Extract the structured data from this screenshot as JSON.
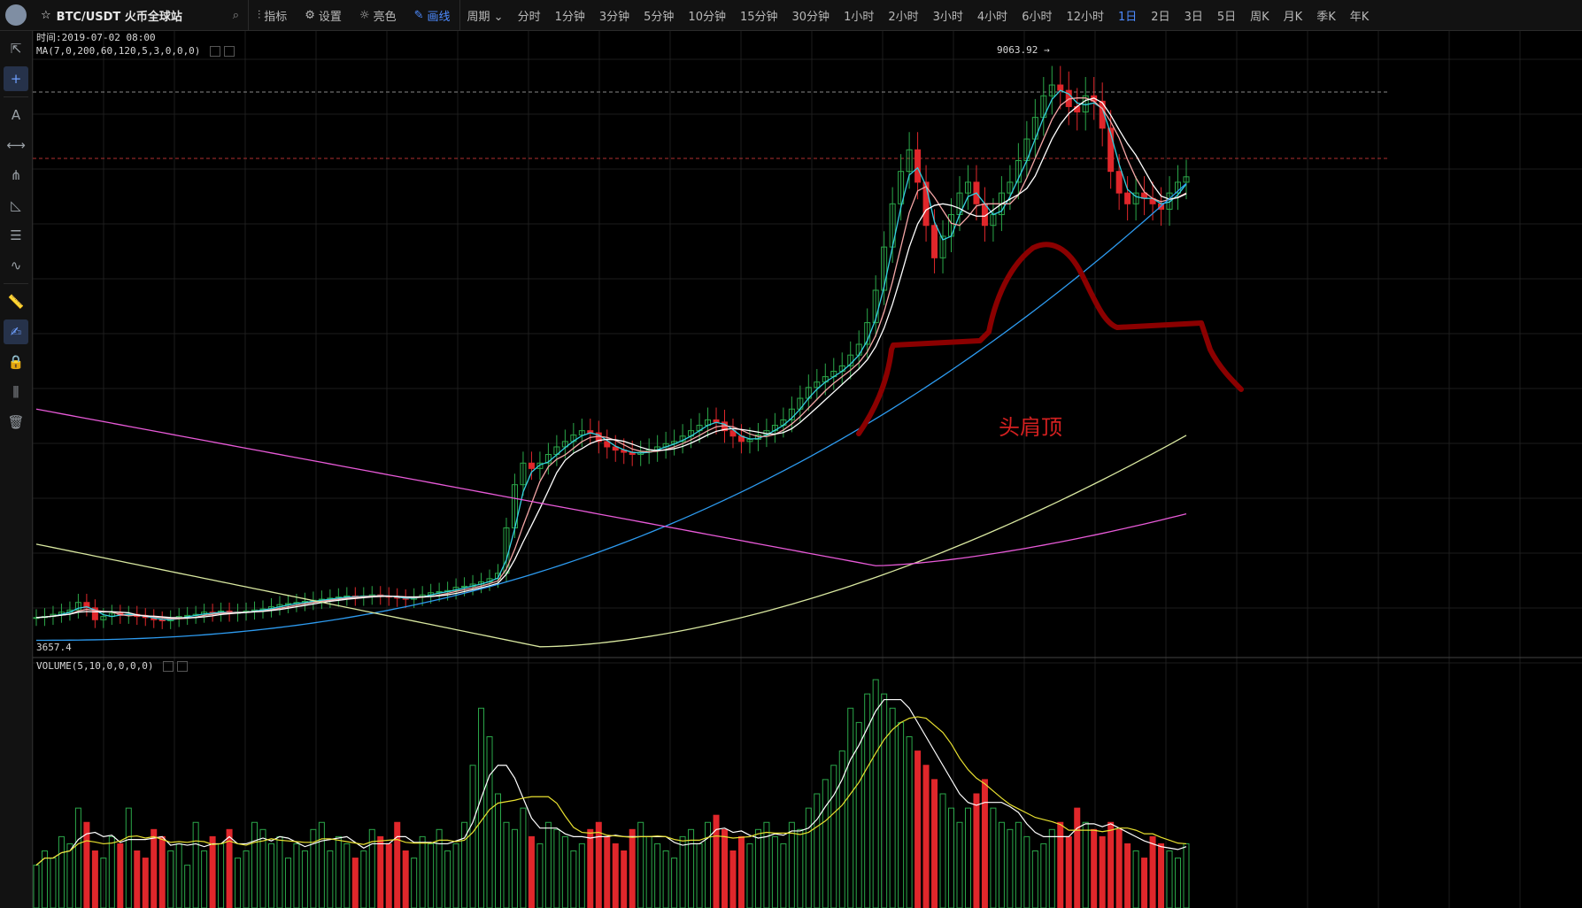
{
  "pair": {
    "title": "BTC/USDT 火币全球站",
    "star_icon": "star-icon",
    "search_icon": "search-icon"
  },
  "toolbar": [
    {
      "label": "指标",
      "icon": "indicator-icon",
      "active": false
    },
    {
      "label": "设置",
      "icon": "gear-icon",
      "active": false
    },
    {
      "label": "亮色",
      "icon": "sun-icon",
      "active": false
    },
    {
      "label": "画线",
      "icon": "pencil-icon",
      "active": true
    }
  ],
  "periods": [
    {
      "label": "周期",
      "dropdown": true
    },
    {
      "label": "分时"
    },
    {
      "label": "1分钟"
    },
    {
      "label": "3分钟"
    },
    {
      "label": "5分钟"
    },
    {
      "label": "10分钟"
    },
    {
      "label": "15分钟"
    },
    {
      "label": "30分钟"
    },
    {
      "label": "1小时"
    },
    {
      "label": "2小时"
    },
    {
      "label": "3小时"
    },
    {
      "label": "4小时"
    },
    {
      "label": "6小时"
    },
    {
      "label": "12小时"
    },
    {
      "label": "1日",
      "active": true
    },
    {
      "label": "2日"
    },
    {
      "label": "3日"
    },
    {
      "label": "5日"
    },
    {
      "label": "周K"
    },
    {
      "label": "月K"
    },
    {
      "label": "季K"
    },
    {
      "label": "年K"
    }
  ],
  "sidebar_tools": [
    "cursor-icon",
    "crosshair-icon",
    "text-icon",
    "line-icon",
    "fork-icon",
    "triangle-icon",
    "parallel-icon",
    "wave-icon",
    "ruler-icon",
    "brush-icon",
    "lock-icon",
    "magnet-icon",
    "trash-icon"
  ],
  "info": {
    "time": "时间:2019-07-02 08:00",
    "ma_label": "MA(7,0,200,60,120,5,3,0,0,0)",
    "volume_label": "VOLUME(5,10,0,0,0,0)",
    "high_label": "9063.92 →",
    "low_label": "3657.4",
    "annotation": "头肩顶"
  },
  "colors": {
    "up": "#2ba84a",
    "down": "#e0272b",
    "ma1": "#ffffff",
    "ma2": "#f4a6a6",
    "ma3": "#35d0e0",
    "ma4": "#2d9bf0",
    "ma5": "#d9e8a0",
    "ma6": "#e85ad8",
    "annot": "#8b0000",
    "vol_ma5": "#ffffff",
    "vol_ma10": "#e8e030"
  },
  "chart_data": {
    "type": "candlestick",
    "price_range": [
      3500,
      9300
    ],
    "high": 9063.92,
    "low": 3657.4,
    "closes": [
      3870,
      3880,
      3900,
      3920,
      3940,
      4010,
      3960,
      3850,
      3880,
      3910,
      3890,
      3900,
      3880,
      3870,
      3850,
      3840,
      3860,
      3880,
      3890,
      3900,
      3920,
      3910,
      3930,
      3910,
      3920,
      3930,
      3940,
      3950,
      3970,
      3990,
      4000,
      4010,
      4020,
      4030,
      4040,
      4050,
      4060,
      4070,
      4060,
      4070,
      4080,
      4070,
      4060,
      4050,
      4040,
      4060,
      4080,
      4100,
      4110,
      4120,
      4150,
      4160,
      4180,
      4200,
      4230,
      4280,
      4700,
      5100,
      5300,
      5250,
      5300,
      5380,
      5450,
      5500,
      5560,
      5600,
      5580,
      5500,
      5450,
      5420,
      5400,
      5380,
      5400,
      5420,
      5450,
      5480,
      5500,
      5550,
      5600,
      5650,
      5700,
      5680,
      5600,
      5550,
      5500,
      5520,
      5560,
      5600,
      5650,
      5700,
      5800,
      5900,
      6000,
      6050,
      6100,
      6150,
      6200,
      6300,
      6400,
      6600,
      6900,
      7300,
      7700,
      8000,
      8200,
      7900,
      7500,
      7200,
      7400,
      7600,
      7800,
      7900,
      7700,
      7500,
      7600,
      7800,
      7900,
      8100,
      8300,
      8500,
      8700,
      8800,
      8750,
      8600,
      8550,
      8700,
      8650,
      8400,
      8000,
      7800,
      7700,
      7800,
      7750,
      7700,
      7650,
      7800,
      7900,
      7950
    ],
    "ma_series": [
      "MA7",
      "MA30",
      "MA60",
      "MA120",
      "MA200"
    ],
    "volume": [
      30,
      40,
      35,
      50,
      45,
      70,
      60,
      40,
      35,
      50,
      45,
      70,
      40,
      35,
      55,
      50,
      40,
      45,
      30,
      60,
      40,
      50,
      45,
      55,
      35,
      40,
      60,
      55,
      45,
      50,
      35,
      45,
      40,
      55,
      60,
      40,
      50,
      45,
      35,
      40,
      55,
      50,
      45,
      60,
      40,
      35,
      50,
      45,
      55,
      40,
      45,
      60,
      100,
      140,
      120,
      80,
      60,
      55,
      70,
      50,
      45,
      60,
      55,
      50,
      40,
      45,
      55,
      60,
      50,
      45,
      40,
      55,
      60,
      50,
      45,
      40,
      35,
      50,
      55,
      45,
      60,
      65,
      55,
      40,
      50,
      45,
      55,
      60,
      50,
      45,
      60,
      55,
      70,
      80,
      90,
      100,
      110,
      140,
      130,
      150,
      160,
      150,
      140,
      130,
      120,
      110,
      100,
      90,
      80,
      70,
      60,
      70,
      80,
      90,
      70,
      60,
      55,
      60,
      50,
      40,
      45,
      55,
      60,
      50,
      70,
      60,
      55,
      50,
      60,
      55,
      45,
      40,
      35,
      50,
      45,
      40,
      35,
      45
    ]
  }
}
